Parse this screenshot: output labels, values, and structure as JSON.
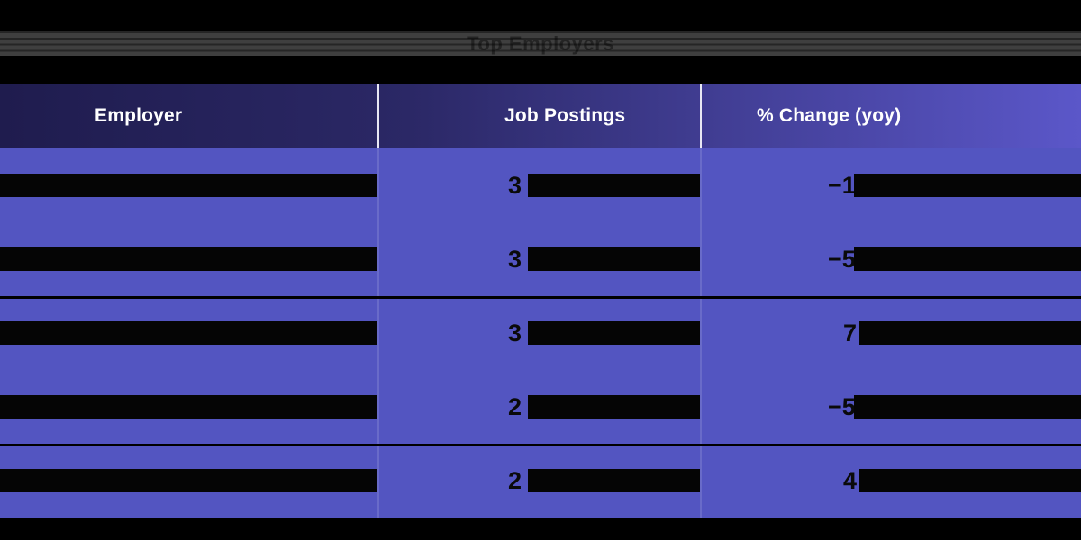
{
  "window": {
    "title": "Top Employers",
    "title_note": "title partially obscured by horizontal black stripes"
  },
  "colors": {
    "page_background": "#000000",
    "title_bar_background": "#3f3f3f",
    "title_text": "#242424",
    "header_gradient_left": "#1f1c4e",
    "header_gradient_right": "#5b57c9",
    "header_text": "#ffffff",
    "header_divider": "#e8e8f4",
    "body_background": "#5355c1",
    "body_text": "#0a0a0a",
    "redaction_bar": "#050505"
  },
  "table": {
    "headers": [
      "Employer",
      "Job Postings",
      "% Change (yoy)"
    ],
    "rows": [
      {
        "employer_redacted": true,
        "job_postings_prefix": "3",
        "job_postings_redacted": true,
        "pct_change_prefix": "−1",
        "pct_change_redacted": true
      },
      {
        "employer_redacted": true,
        "job_postings_prefix": "3",
        "job_postings_redacted": true,
        "pct_change_prefix": "−5",
        "pct_change_redacted": true
      },
      {
        "employer_redacted": true,
        "job_postings_prefix": "3",
        "job_postings_redacted": true,
        "pct_change_prefix": "7",
        "pct_change_redacted": true
      },
      {
        "employer_redacted": true,
        "job_postings_prefix": "2",
        "job_postings_redacted": true,
        "pct_change_prefix": "−5",
        "pct_change_redacted": true
      },
      {
        "employer_redacted": true,
        "job_postings_prefix": "2",
        "job_postings_redacted": true,
        "pct_change_prefix": "4",
        "pct_change_redacted": true
      }
    ]
  },
  "chart_data": {
    "type": "table",
    "title": "Top Employers (partially redacted screenshot)",
    "columns": [
      "Employer",
      "Job Postings",
      "% Change (yoy)"
    ],
    "rows": [
      {
        "employer": "(redacted)",
        "job_postings": "3… (rest redacted)",
        "pct_change_yoy": "−1… (rest redacted)"
      },
      {
        "employer": "(redacted)",
        "job_postings": "3… (rest redacted)",
        "pct_change_yoy": "−5… (rest redacted)"
      },
      {
        "employer": "(redacted)",
        "job_postings": "3… (rest redacted)",
        "pct_change_yoy": "7… (rest redacted)"
      },
      {
        "employer": "(redacted)",
        "job_postings": "2… (rest redacted)",
        "pct_change_yoy": "−5… (rest redacted)"
      },
      {
        "employer": "(redacted)",
        "job_postings": "2… (rest redacted)",
        "pct_change_yoy": "4… (rest redacted)"
      }
    ],
    "layout": {
      "header_style": "navy-to-purple gradient with white column dividers",
      "row_grouping": "black separator lines after rows 2 and 4",
      "redaction": "black bars cover employer names and value tails; only leading characters of numeric values visible"
    }
  }
}
